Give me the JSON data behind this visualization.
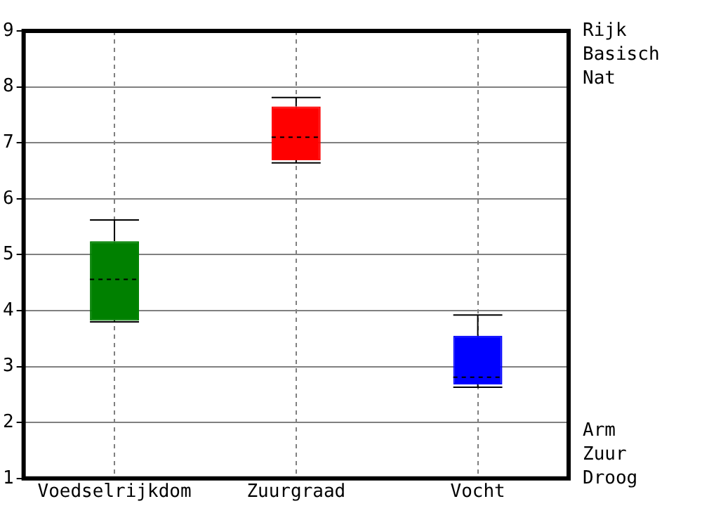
{
  "chart_data": {
    "type": "box",
    "categories": [
      "Voedselrijkdom",
      "Zuurgraad",
      "Vocht"
    ],
    "colors": [
      "#008000",
      "#ff0000",
      "#0000ff"
    ],
    "boxes": [
      {
        "low": 3.8,
        "q1": 3.82,
        "median": 4.56,
        "q3": 5.24,
        "high": 5.62
      },
      {
        "low": 6.64,
        "q1": 6.69,
        "median": 7.1,
        "q3": 7.65,
        "high": 7.81
      },
      {
        "low": 2.63,
        "q1": 2.68,
        "median": 2.81,
        "q3": 3.55,
        "high": 3.92
      }
    ],
    "ylim": [
      1,
      9
    ],
    "yticks": [
      1,
      2,
      3,
      4,
      5,
      6,
      7,
      8,
      9
    ],
    "grid": true,
    "annotations": [
      "Rijk",
      "Basisch",
      "Nat",
      "Arm",
      "Zuur",
      "Droog"
    ]
  }
}
